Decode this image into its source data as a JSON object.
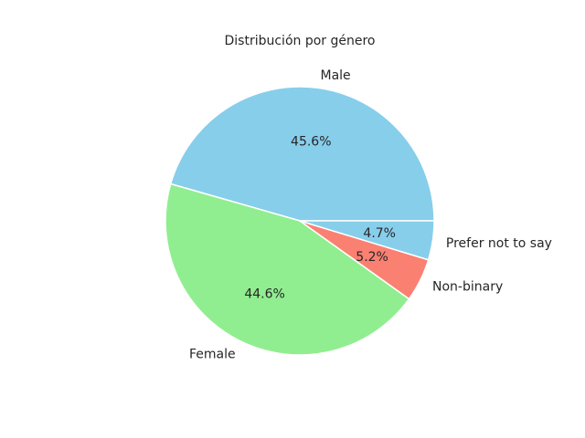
{
  "chart_data": {
    "type": "pie",
    "title": "Distribución por género",
    "slices": [
      {
        "label": "Male",
        "value": 45.6,
        "pct_label": "45.6%",
        "color": "#87CEEB"
      },
      {
        "label": "Female",
        "value": 44.6,
        "pct_label": "44.6%",
        "color": "#90EE90"
      },
      {
        "label": "Non-binary",
        "value": 5.2,
        "pct_label": "5.2%",
        "color": "#FA8072"
      },
      {
        "label": "Prefer not to say",
        "value": 4.7,
        "pct_label": "4.7%",
        "color": "#87CEEB"
      }
    ],
    "start_angle_deg": 0,
    "direction": "counterclockwise",
    "edge_color": "#ffffff"
  }
}
